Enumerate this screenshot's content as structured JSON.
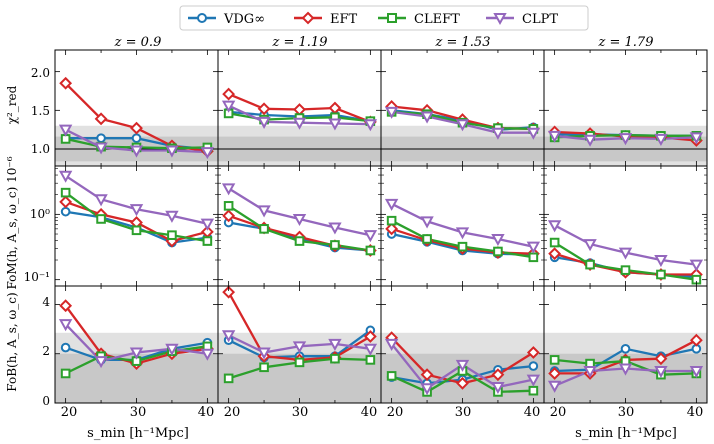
{
  "legend": [
    {
      "label": "VDG∞",
      "color": "#1f77b4",
      "marker": "circle"
    },
    {
      "label": "EFT",
      "color": "#d62728",
      "marker": "diamond"
    },
    {
      "label": "CLEFT",
      "color": "#2ca02c",
      "marker": "square"
    },
    {
      "label": "CLPT",
      "color": "#9467bd",
      "marker": "triangle-down"
    }
  ],
  "columns": [
    "z = 0.9",
    "z = 1.19",
    "z = 1.53",
    "z = 1.79"
  ],
  "x_label": "s_min [h⁻¹Mpc]",
  "x_ticks": [
    20,
    30,
    40
  ],
  "row_labels": [
    "χ²_red",
    "FoM(h, A_s, ω_c) 10⁻⁶",
    "FoB(h, A_s, ω_c)"
  ],
  "row_tick_labels": [
    [
      "1.0",
      "1.5",
      "2.0"
    ],
    [
      "10⁻¹",
      "10⁰"
    ],
    [
      "0",
      "2",
      "4"
    ]
  ],
  "chart_data": {
    "type": "line",
    "x": [
      20,
      25,
      30,
      35,
      40
    ],
    "xlim": [
      18.5,
      41.5
    ],
    "rows": [
      {
        "name": "chi2_red",
        "scale": "linear",
        "ylim": [
          0.78,
          2.28
        ],
        "yticks": [
          1.0,
          1.5,
          2.0
        ],
        "ref_line": 1.0,
        "bands": [
          {
            "from": 0.84,
            "to": 1.16,
            "shade": "dark"
          },
          {
            "from": 0.7,
            "to": 1.3,
            "shade": "light"
          }
        ],
        "panels": [
          {
            "series": [
              {
                "name": "VDG∞",
                "values": [
                  1.14,
                  1.14,
                  1.14,
                  1.04,
                  1.0
                ]
              },
              {
                "name": "EFT",
                "values": [
                  1.85,
                  1.39,
                  1.27,
                  1.04,
                  0.97
                ]
              },
              {
                "name": "CLEFT",
                "values": [
                  1.13,
                  1.03,
                  1.02,
                  1.01,
                  1.02
                ]
              },
              {
                "name": "CLPT",
                "values": [
                  1.25,
                  1.02,
                  0.98,
                  0.98,
                  0.96
                ]
              }
            ]
          },
          {
            "series": [
              {
                "name": "VDG∞",
                "values": [
                  1.48,
                  1.44,
                  1.42,
                  1.44,
                  1.36
                ]
              },
              {
                "name": "EFT",
                "values": [
                  1.71,
                  1.52,
                  1.51,
                  1.53,
                  1.35
                ]
              },
              {
                "name": "CLEFT",
                "values": [
                  1.46,
                  1.38,
                  1.4,
                  1.41,
                  1.36
                ]
              },
              {
                "name": "CLPT",
                "values": [
                  1.56,
                  1.35,
                  1.34,
                  1.33,
                  1.32
                ]
              }
            ]
          },
          {
            "series": [
              {
                "name": "VDG∞",
                "values": [
                  1.5,
                  1.45,
                  1.37,
                  1.25,
                  1.28
                ]
              },
              {
                "name": "EFT",
                "values": [
                  1.55,
                  1.5,
                  1.38,
                  1.27,
                  1.26
                ]
              },
              {
                "name": "CLEFT",
                "values": [
                  1.48,
                  1.45,
                  1.34,
                  1.27,
                  1.26
                ]
              },
              {
                "name": "CLPT",
                "values": [
                  1.48,
                  1.42,
                  1.32,
                  1.21,
                  1.21
                ]
              }
            ]
          },
          {
            "series": [
              {
                "name": "VDG∞",
                "values": [
                  1.19,
                  1.19,
                  1.18,
                  1.17,
                  1.17
                ]
              },
              {
                "name": "EFT",
                "values": [
                  1.22,
                  1.2,
                  1.16,
                  1.15,
                  1.11
                ]
              },
              {
                "name": "CLEFT",
                "values": [
                  1.15,
                  1.17,
                  1.18,
                  1.17,
                  1.17
                ]
              },
              {
                "name": "CLPT",
                "values": [
                  1.17,
                  1.12,
                  1.14,
                  1.13,
                  1.15
                ]
              }
            ]
          }
        ]
      },
      {
        "name": "FoM",
        "scale": "log",
        "ylim": [
          0.08,
          5.5
        ],
        "yticks": [
          0.1,
          1.0
        ],
        "panels": [
          {
            "series": [
              {
                "name": "VDG∞",
                "values": [
                  1.1,
                  0.9,
                  0.63,
                  0.37,
                  0.44
                ]
              },
              {
                "name": "EFT",
                "values": [
                  1.55,
                  1.0,
                  0.75,
                  0.39,
                  0.54
                ]
              },
              {
                "name": "CLEFT",
                "values": [
                  2.15,
                  0.85,
                  0.57,
                  0.48,
                  0.39
                ]
              },
              {
                "name": "CLPT",
                "values": [
                  3.9,
                  1.7,
                  1.2,
                  0.95,
                  0.72
                ]
              }
            ]
          },
          {
            "series": [
              {
                "name": "VDG∞",
                "values": [
                  0.75,
                  0.6,
                  0.42,
                  0.31,
                  0.28
                ]
              },
              {
                "name": "EFT",
                "values": [
                  0.95,
                  0.62,
                  0.45,
                  0.33,
                  0.28
                ]
              },
              {
                "name": "CLEFT",
                "values": [
                  1.35,
                  0.6,
                  0.39,
                  0.34,
                  0.28
                ]
              },
              {
                "name": "CLPT",
                "values": [
                  2.5,
                  1.15,
                  0.85,
                  0.63,
                  0.48
                ]
              }
            ]
          },
          {
            "series": [
              {
                "name": "VDG∞",
                "values": [
                  0.5,
                  0.38,
                  0.28,
                  0.25,
                  0.24
                ]
              },
              {
                "name": "EFT",
                "values": [
                  0.6,
                  0.4,
                  0.3,
                  0.26,
                  0.25
                ]
              },
              {
                "name": "CLEFT",
                "values": [
                  0.8,
                  0.42,
                  0.32,
                  0.27,
                  0.22
                ]
              },
              {
                "name": "CLPT",
                "values": [
                  1.45,
                  0.78,
                  0.53,
                  0.42,
                  0.32
                ]
              }
            ]
          },
          {
            "series": [
              {
                "name": "VDG∞",
                "values": [
                  0.22,
                  0.18,
                  0.13,
                  0.12,
                  0.11
                ]
              },
              {
                "name": "EFT",
                "values": [
                  0.25,
                  0.17,
                  0.13,
                  0.12,
                  0.12
                ]
              },
              {
                "name": "CLEFT",
                "values": [
                  0.37,
                  0.17,
                  0.14,
                  0.12,
                  0.1
                ]
              },
              {
                "name": "CLPT",
                "values": [
                  0.68,
                  0.35,
                  0.26,
                  0.2,
                  0.17
                ]
              }
            ]
          }
        ]
      },
      {
        "name": "FoB",
        "scale": "linear",
        "ylim": [
          0,
          4.75
        ],
        "yticks": [
          0,
          2,
          4
        ],
        "bands": [
          {
            "from": 0,
            "to": 2.0,
            "shade": "dark"
          },
          {
            "from": 0,
            "to": 2.85,
            "shade": "light"
          }
        ],
        "panels": [
          {
            "series": [
              {
                "name": "VDG∞",
                "values": [
                  2.25,
                  1.75,
                  1.75,
                  2.2,
                  2.45
                ]
              },
              {
                "name": "EFT",
                "values": [
                  3.95,
                  2.0,
                  1.6,
                  2.0,
                  2.2
                ]
              },
              {
                "name": "CLEFT",
                "values": [
                  1.2,
                  1.9,
                  1.7,
                  2.1,
                  2.3
                ]
              },
              {
                "name": "CLPT",
                "values": [
                  3.2,
                  1.7,
                  2.05,
                  2.2,
                  2.0
                ]
              }
            ]
          },
          {
            "series": [
              {
                "name": "VDG∞",
                "values": [
                  2.55,
                  1.85,
                  1.9,
                  1.9,
                  2.95
                ]
              },
              {
                "name": "EFT",
                "values": [
                  4.5,
                  1.9,
                  1.75,
                  1.85,
                  2.7
                ]
              },
              {
                "name": "CLEFT",
                "values": [
                  1.0,
                  1.45,
                  1.65,
                  1.8,
                  1.75
                ]
              },
              {
                "name": "CLPT",
                "values": [
                  2.75,
                  2.05,
                  2.3,
                  2.4,
                  2.2
                ]
              }
            ]
          },
          {
            "series": [
              {
                "name": "VDG∞",
                "values": [
                  1.05,
                  0.8,
                  0.95,
                  1.35,
                  1.5
                ]
              },
              {
                "name": "EFT",
                "values": [
                  2.65,
                  1.15,
                  0.8,
                  1.15,
                  2.05
                ]
              },
              {
                "name": "CLEFT",
                "values": [
                  1.1,
                  0.45,
                  1.3,
                  0.45,
                  0.5
                ]
              },
              {
                "name": "CLPT",
                "values": [
                  2.4,
                  0.6,
                  1.55,
                  0.65,
                  0.95
                ]
              }
            ]
          },
          {
            "series": [
              {
                "name": "VDG∞",
                "values": [
                  1.3,
                  1.35,
                  2.2,
                  1.9,
                  2.2
                ]
              },
              {
                "name": "EFT",
                "values": [
                  1.2,
                  1.2,
                  1.75,
                  1.8,
                  2.55
                ]
              },
              {
                "name": "CLEFT",
                "values": [
                  1.75,
                  1.6,
                  1.7,
                  1.15,
                  1.2
                ]
              },
              {
                "name": "CLPT",
                "values": [
                  0.7,
                  1.3,
                  1.4,
                  1.3,
                  1.3
                ]
              }
            ]
          }
        ]
      }
    ]
  }
}
